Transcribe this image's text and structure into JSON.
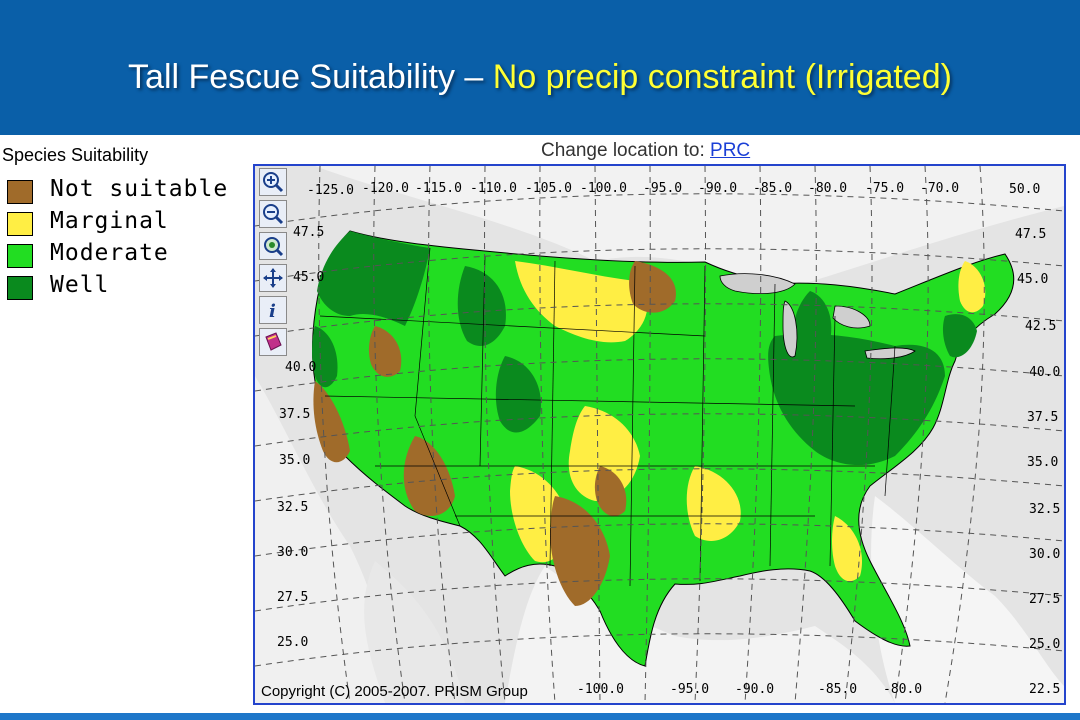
{
  "header": {
    "title_part1": "Tall Fescue Suitability – ",
    "title_part2": "No precip constraint (Irrigated)"
  },
  "legend": {
    "title": "Species Suitability",
    "items": [
      {
        "label": "Not suitable",
        "color": "#a06b2a"
      },
      {
        "label": "Marginal",
        "color": "#ffee44"
      },
      {
        "label": "Moderate",
        "color": "#22dd22"
      },
      {
        "label": "Well",
        "color": "#0a8a1e"
      }
    ]
  },
  "map": {
    "change_location_label": "Change location to:",
    "change_location_link": "PRC",
    "copyright": "Copyright (C) 2005-2007. PRISM Group",
    "lon_labels_top": [
      "-125.0",
      "-120.0",
      "-115.0",
      "-110.0",
      "-105.0",
      "-100.0",
      "-95.0",
      "-90.0",
      "-85.0",
      "-80.0",
      "-75.0",
      "-70.0"
    ],
    "lon_labels_bottom": [
      "-100.0",
      "-95.0",
      "-90.0",
      "-85.0",
      "-80.0"
    ],
    "lat_labels_left": [
      "47.5",
      "45.0",
      "40.0",
      "37.5",
      "35.0",
      "32.5",
      "30.0",
      "27.5",
      "25.0"
    ],
    "lat_labels_right": [
      "50.0",
      "47.5",
      "45.0",
      "42.5",
      "40.0",
      "37.5",
      "35.0",
      "32.5",
      "30.0",
      "27.5",
      "25.0",
      "22.5"
    ],
    "tools": [
      "zoom-in-icon",
      "zoom-out-icon",
      "zoom-extent-icon",
      "pan-icon",
      "info-icon",
      "help-book-icon"
    ]
  }
}
